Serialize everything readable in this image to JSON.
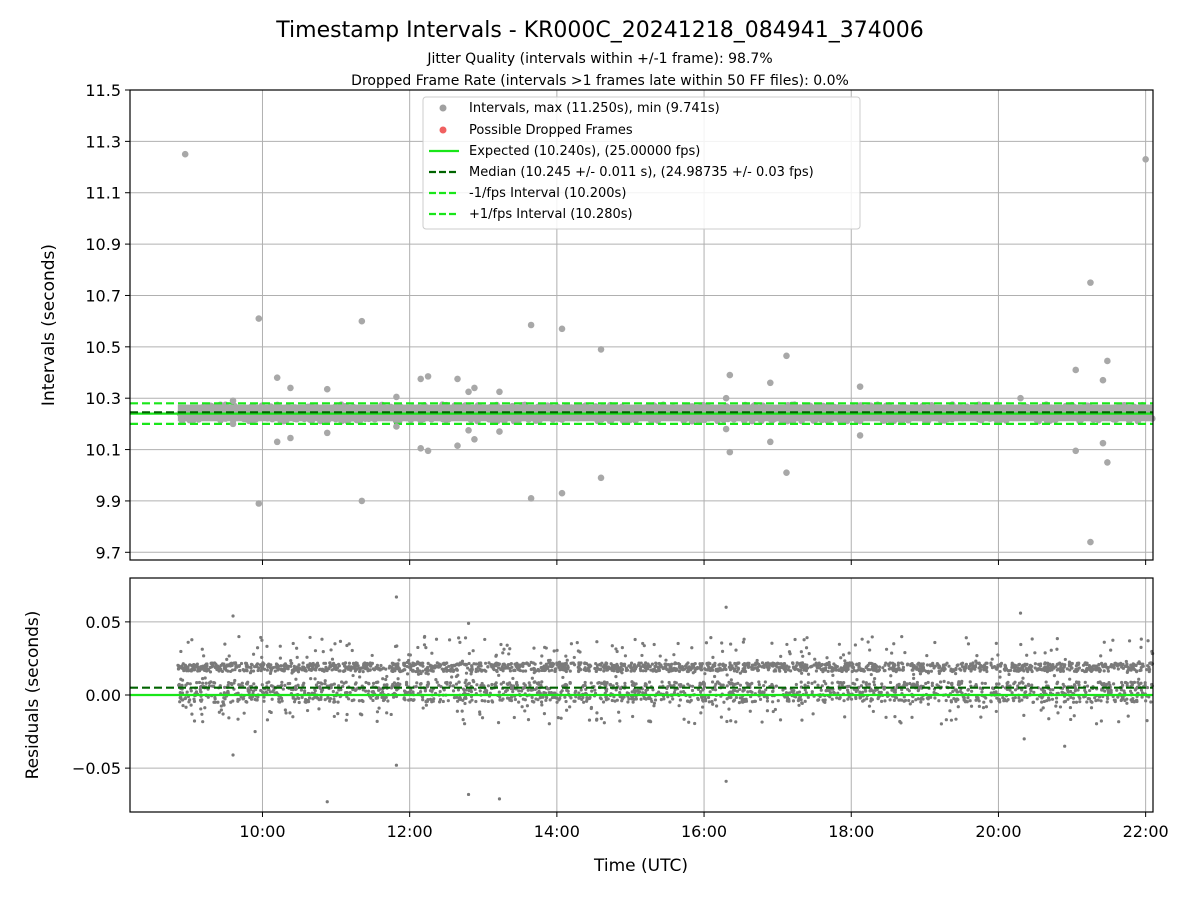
{
  "header": {
    "title": "Timestamp Intervals - KR000C_20241218_084941_374006",
    "subtitle_1": "Jitter Quality (intervals within +/-1 frame): 98.7%",
    "subtitle_2": "Dropped Frame Rate (intervals >1 frames late within 50 FF files): 0.0%"
  },
  "chart_data": [
    {
      "type": "scatter",
      "xlabel": "",
      "ylabel": "Intervals (seconds)",
      "xlim_hours": [
        8.2,
        22.1
      ],
      "ylim": [
        9.67,
        11.5
      ],
      "yticks": [
        "11.5",
        "11.3",
        "11.1",
        "10.9",
        "10.7",
        "10.5",
        "10.3",
        "10.1",
        "9.9",
        "9.7"
      ],
      "ytick_values": [
        11.5,
        11.3,
        11.1,
        10.9,
        10.7,
        10.5,
        10.3,
        10.1,
        9.9,
        9.7
      ],
      "xtick_values_hours": [
        10,
        12,
        14,
        16,
        18,
        20,
        22
      ],
      "grid": true,
      "legend_position": "top-center",
      "legend": [
        {
          "label": "Intervals, max (11.250s), min (9.741s)",
          "kind": "marker",
          "color": "#a0a0a0"
        },
        {
          "label": "Possible Dropped Frames",
          "kind": "marker",
          "color": "#f06060"
        },
        {
          "label": "Expected (10.240s), (25.00000 fps)",
          "kind": "solid",
          "color": "#19e619"
        },
        {
          "label": "Median (10.245 +/- 0.011 s), (24.98735 +/- 0.03 fps)",
          "kind": "dashed",
          "color": "#006400"
        },
        {
          "label": "-1/fps Interval (10.200s)",
          "kind": "dashed",
          "color": "#19e619"
        },
        {
          "label": "+1/fps Interval (10.280s)",
          "kind": "dashed",
          "color": "#19e619"
        }
      ],
      "lines": {
        "expected": 10.24,
        "median": 10.245,
        "minus_fps": 10.2,
        "plus_fps": 10.28
      },
      "band": {
        "start_hours": 8.85,
        "end_hours": 22.1,
        "min": 10.21,
        "max": 10.275
      },
      "outliers": [
        [
          8.95,
          11.25
        ],
        [
          9.95,
          10.61
        ],
        [
          9.95,
          9.89
        ],
        [
          9.6,
          10.29
        ],
        [
          9.6,
          10.2
        ],
        [
          10.2,
          10.38
        ],
        [
          10.2,
          10.13
        ],
        [
          10.38,
          10.34
        ],
        [
          10.38,
          10.145
        ],
        [
          10.88,
          10.335
        ],
        [
          10.88,
          10.165
        ],
        [
          11.35,
          10.6
        ],
        [
          11.35,
          9.9
        ],
        [
          11.82,
          10.305
        ],
        [
          11.82,
          10.19
        ],
        [
          12.15,
          10.375
        ],
        [
          12.15,
          10.105
        ],
        [
          12.25,
          10.385
        ],
        [
          12.25,
          10.095
        ],
        [
          12.65,
          10.375
        ],
        [
          12.65,
          10.115
        ],
        [
          12.8,
          10.325
        ],
        [
          12.8,
          10.175
        ],
        [
          12.88,
          10.34
        ],
        [
          12.88,
          10.14
        ],
        [
          13.22,
          10.325
        ],
        [
          13.22,
          10.17
        ],
        [
          13.65,
          10.585
        ],
        [
          13.65,
          9.91
        ],
        [
          14.07,
          10.57
        ],
        [
          14.07,
          9.93
        ],
        [
          14.6,
          10.49
        ],
        [
          14.6,
          9.99
        ],
        [
          16.3,
          10.3
        ],
        [
          16.3,
          10.18
        ],
        [
          16.35,
          10.39
        ],
        [
          16.35,
          10.09
        ],
        [
          16.9,
          10.36
        ],
        [
          16.9,
          10.13
        ],
        [
          17.12,
          10.465
        ],
        [
          17.12,
          10.01
        ],
        [
          18.12,
          10.345
        ],
        [
          18.12,
          10.155
        ],
        [
          20.3,
          10.3
        ],
        [
          21.05,
          10.41
        ],
        [
          21.05,
          10.095
        ],
        [
          21.25,
          10.75
        ],
        [
          21.25,
          9.74
        ],
        [
          21.42,
          10.37
        ],
        [
          21.42,
          10.125
        ],
        [
          21.48,
          10.445
        ],
        [
          21.48,
          10.05
        ],
        [
          22.0,
          11.23
        ]
      ]
    },
    {
      "type": "scatter",
      "xlabel": "Time (UTC)",
      "ylabel": "Residuals (seconds)",
      "xlim_hours": [
        8.2,
        22.1
      ],
      "ylim": [
        -0.08,
        0.08
      ],
      "yticks": [
        "0.05",
        "0.00",
        "−0.05"
      ],
      "ytick_values": [
        0.05,
        0.0,
        -0.05
      ],
      "xticks": [
        "10:00",
        "12:00",
        "14:00",
        "16:00",
        "18:00",
        "20:00",
        "22:00"
      ],
      "xtick_values_hours": [
        10,
        12,
        14,
        16,
        18,
        20,
        22
      ],
      "grid": true,
      "lines": {
        "expected": 0.0,
        "median": 0.005
      },
      "outliers": [
        [
          9.6,
          0.054
        ],
        [
          9.6,
          -0.041
        ],
        [
          9.9,
          -0.025
        ],
        [
          10.88,
          -0.073
        ],
        [
          11.82,
          0.067
        ],
        [
          11.82,
          -0.048
        ],
        [
          12.8,
          0.049
        ],
        [
          12.8,
          -0.068
        ],
        [
          13.22,
          -0.071
        ],
        [
          16.3,
          0.06
        ],
        [
          16.3,
          -0.059
        ],
        [
          20.3,
          0.056
        ],
        [
          20.9,
          -0.035
        ],
        [
          20.35,
          -0.03
        ]
      ]
    }
  ]
}
